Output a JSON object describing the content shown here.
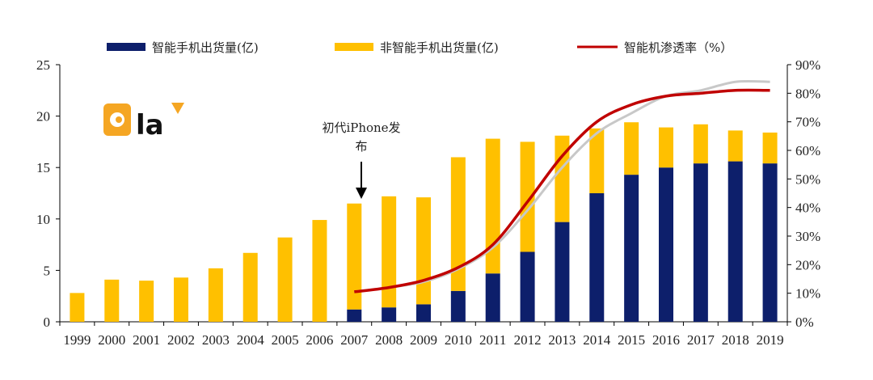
{
  "chart_data": {
    "type": "bar",
    "stacked": true,
    "categories": [
      "1999",
      "2000",
      "2001",
      "2002",
      "2003",
      "2004",
      "2005",
      "2006",
      "2007",
      "2008",
      "2009",
      "2010",
      "2011",
      "2012",
      "2013",
      "2014",
      "2015",
      "2016",
      "2017",
      "2018",
      "2019"
    ],
    "series": [
      {
        "name": "智能手机出货量(亿)",
        "color": "#0d1f6b",
        "values": [
          0,
          0,
          0,
          0,
          0,
          0,
          0,
          0,
          1.2,
          1.4,
          1.7,
          3.0,
          4.7,
          6.8,
          9.7,
          12.5,
          14.3,
          15.0,
          15.4,
          15.6,
          15.4
        ]
      },
      {
        "name": "非智能手机出货量(亿)",
        "color": "#ffc000",
        "values": [
          2.8,
          4.1,
          4.0,
          4.3,
          5.2,
          6.7,
          8.2,
          9.9,
          10.3,
          10.8,
          10.4,
          13.0,
          13.1,
          10.7,
          8.4,
          6.3,
          5.1,
          3.9,
          3.8,
          3.0,
          3.0
        ]
      }
    ],
    "line_series": [
      {
        "name": "智能机渗透率（%）",
        "color": "#c00000",
        "x": [
          "2007",
          "2008",
          "2009",
          "2010",
          "2011",
          "2012",
          "2013",
          "2014",
          "2015",
          "2016",
          "2017",
          "2018",
          "2019"
        ],
        "values": [
          10.5,
          12.0,
          14.5,
          19.0,
          27.0,
          42.0,
          58.0,
          70.0,
          76.0,
          79.0,
          80.0,
          81.0,
          81.0
        ]
      },
      {
        "color": "#c8c8c8",
        "x": [
          "2007",
          "2008",
          "2009",
          "2010",
          "2011",
          "2012",
          "2013",
          "2014",
          "2015",
          "2016",
          "2017",
          "2018",
          "2019"
        ],
        "values": [
          10.5,
          12.0,
          14.0,
          18.5,
          26.0,
          39.0,
          54.0,
          66.0,
          73.0,
          79.0,
          81.0,
          84.0,
          84.0
        ]
      }
    ],
    "y_left": {
      "ylim": [
        0,
        25
      ],
      "ticks": [
        "0",
        "5",
        "10",
        "15",
        "20",
        "25"
      ]
    },
    "y_right": {
      "ylim": [
        0,
        90
      ],
      "ticks": [
        "0%",
        "10%",
        "20%",
        "30%",
        "40%",
        "50%",
        "60%",
        "70%",
        "80%",
        "90%"
      ]
    },
    "annotation": {
      "lines": [
        "初代iPhone发",
        "布"
      ],
      "category": "2007"
    },
    "legend_position": "top",
    "grid": false,
    "logo": {
      "mark": "O",
      "text": "la",
      "accent": "#f5a623"
    }
  }
}
